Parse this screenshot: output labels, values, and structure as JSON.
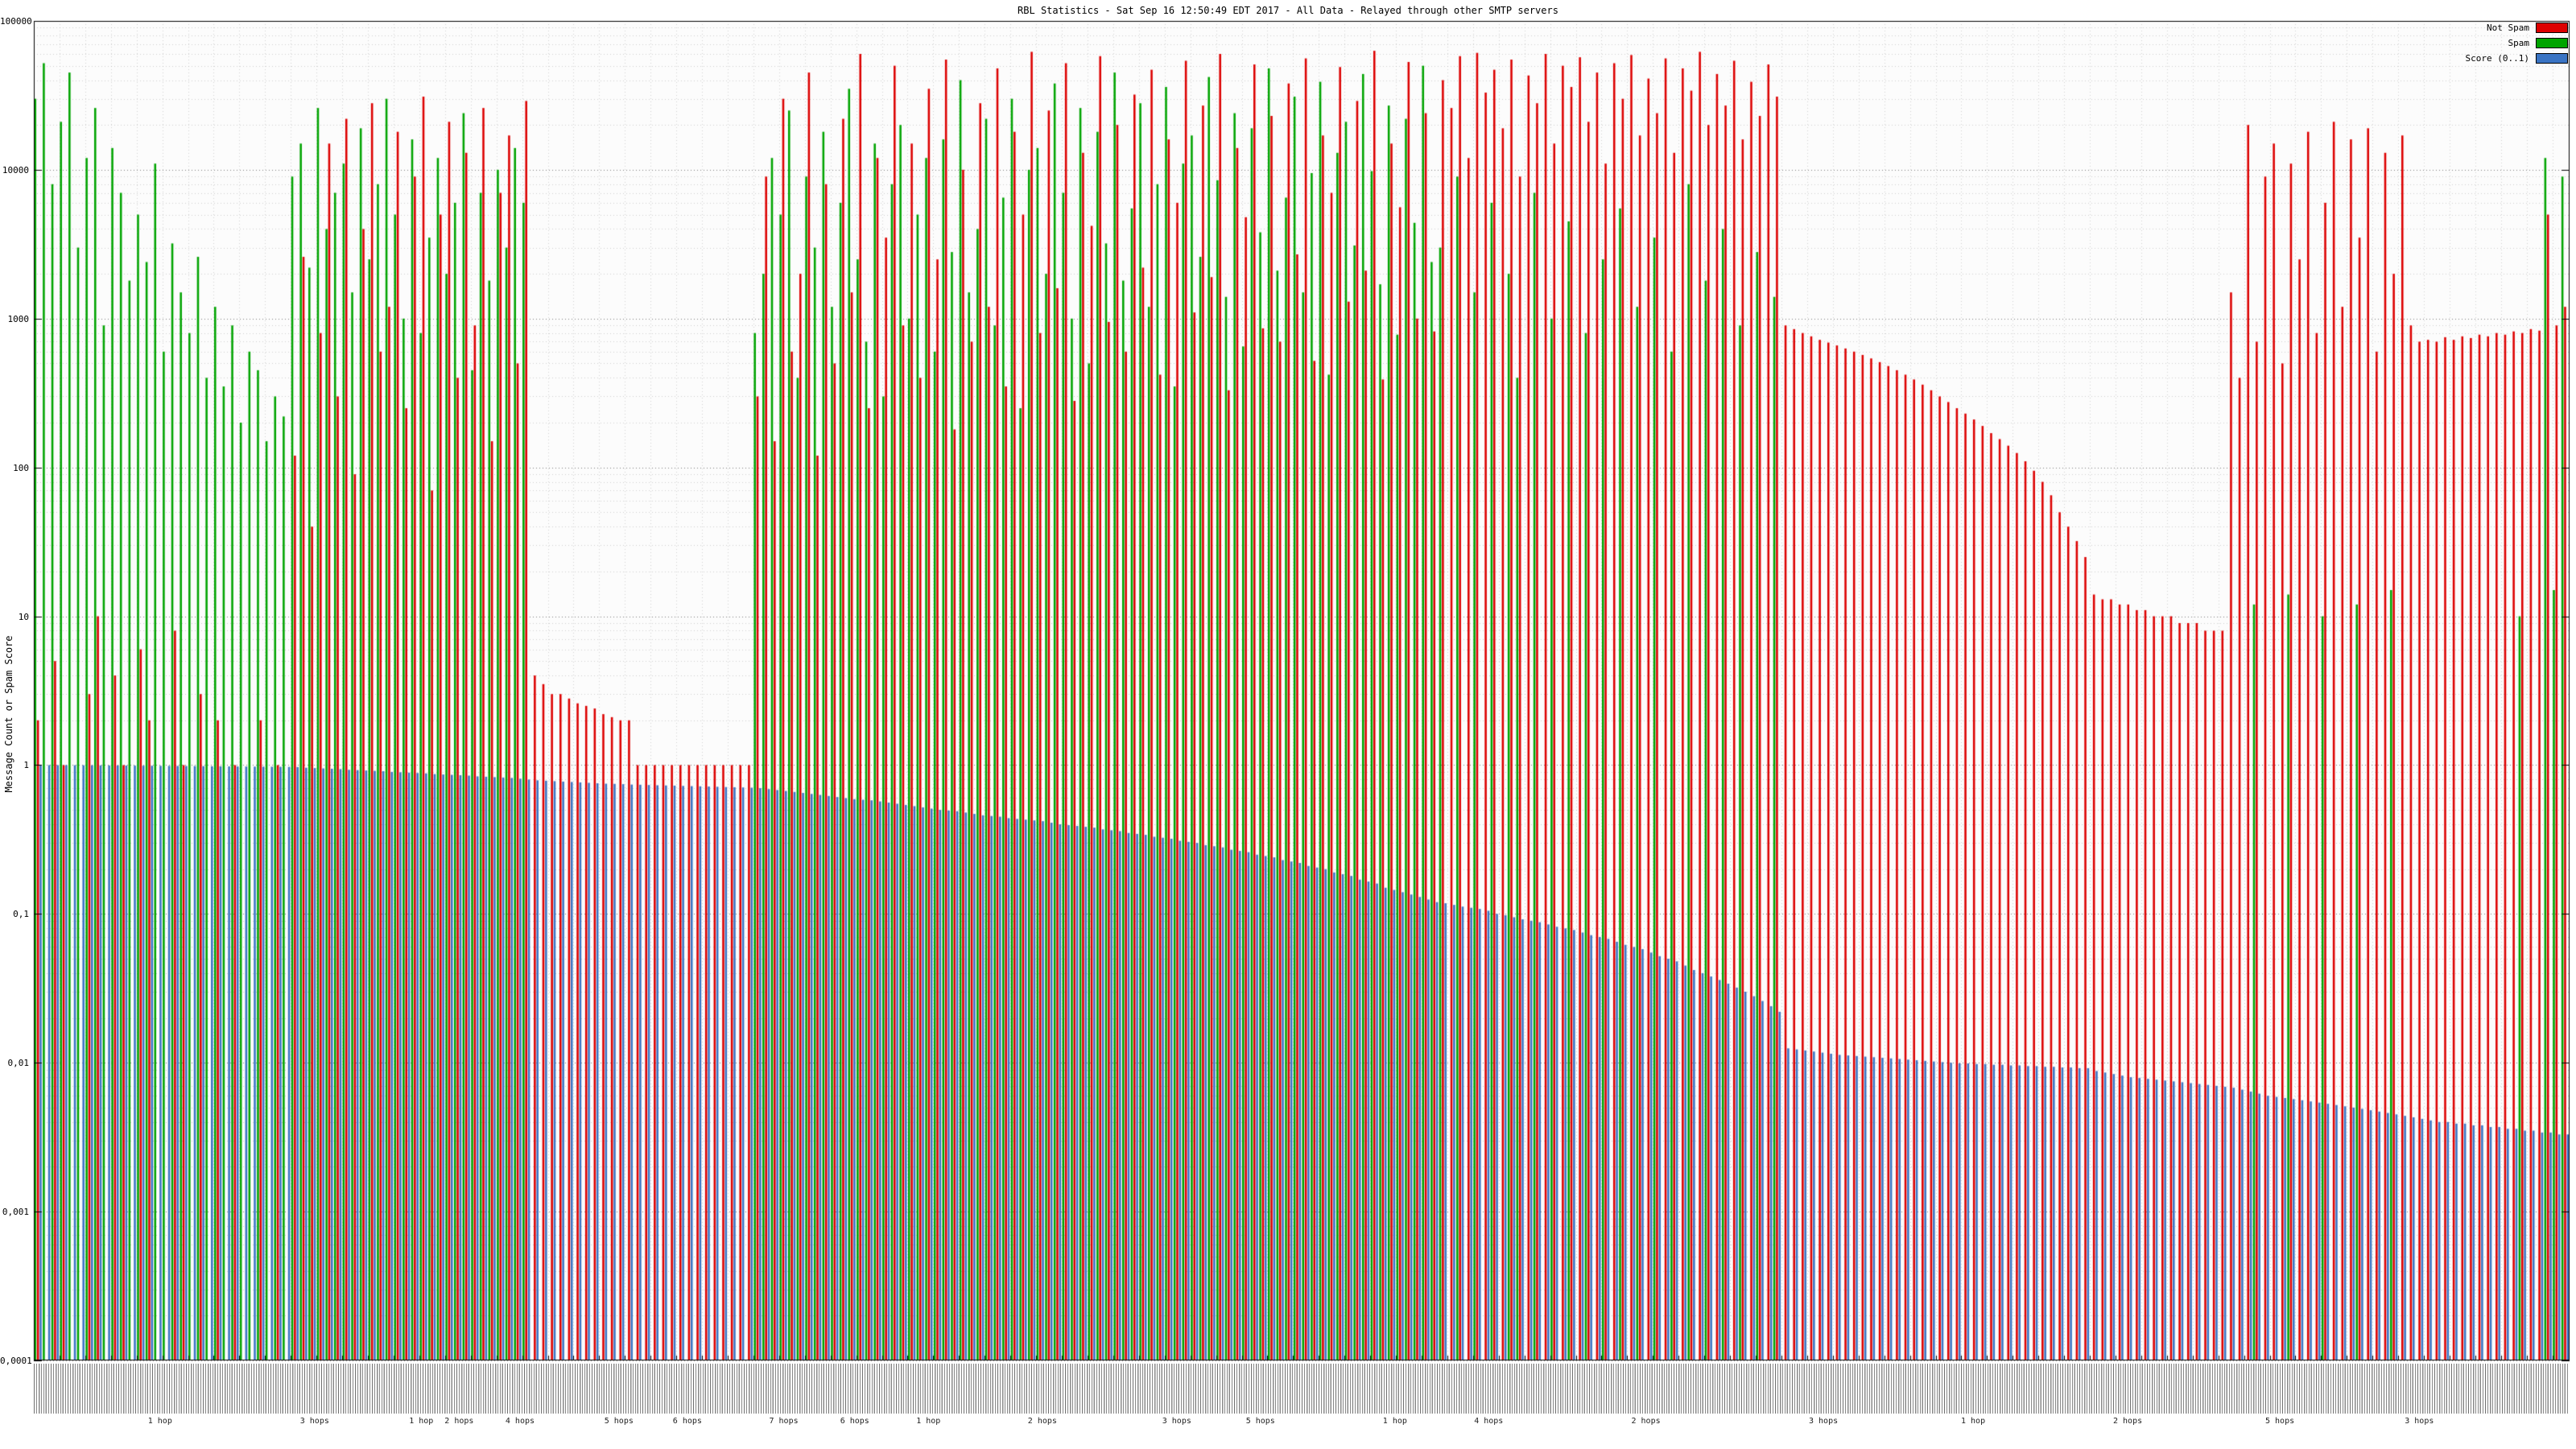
{
  "page": {
    "title": "RBL Statistics - Sat Sep 16 12:50:49 EDT 2017 - All Data - Relayed through other SMTP servers"
  },
  "chart_data": {
    "type": "bar",
    "title": "RBL Statistics - Sat Sep 16 12:50:49 EDT 2017 - All Data - Relayed through other SMTP servers",
    "xlabel": "",
    "ylabel": "Message Count or Spam Score",
    "y_scale": "log10",
    "ylim": [
      0.0001,
      100000
    ],
    "y_ticks": [
      "100000",
      "10000",
      "1000",
      "100",
      "10",
      "1",
      "0,1",
      "0,01",
      "0,001",
      "0,0001"
    ],
    "grid": "dotted",
    "legend_position": "top-right",
    "legend": [
      {
        "label": "Not Spam",
        "color": "#dd0000"
      },
      {
        "label": "Spam",
        "color": "#00a400"
      },
      {
        "label": "Score (0..1)",
        "color": "#3a74c4"
      }
    ],
    "series_keys": [
      "not_spam",
      "spam",
      "score"
    ],
    "hop_markers": [
      {
        "label": "1 hop",
        "pos": 0.045
      },
      {
        "label": "3 hops",
        "pos": 0.105
      },
      {
        "label": "1 hop",
        "pos": 0.148
      },
      {
        "label": "2 hops",
        "pos": 0.162
      },
      {
        "label": "4 hops",
        "pos": 0.186
      },
      {
        "label": "5 hops",
        "pos": 0.225
      },
      {
        "label": "6 hops",
        "pos": 0.252
      },
      {
        "label": "7 hops",
        "pos": 0.29
      },
      {
        "label": "6 hops",
        "pos": 0.318
      },
      {
        "label": "1 hop",
        "pos": 0.348
      },
      {
        "label": "2 hops",
        "pos": 0.392
      },
      {
        "label": "3 hops",
        "pos": 0.445
      },
      {
        "label": "5 hops",
        "pos": 0.478
      },
      {
        "label": "1 hop",
        "pos": 0.532
      },
      {
        "label": "4 hops",
        "pos": 0.568
      },
      {
        "label": "2 hops",
        "pos": 0.63
      },
      {
        "label": "3 hops",
        "pos": 0.7
      },
      {
        "label": "1 hop",
        "pos": 0.76
      },
      {
        "label": "2 hops",
        "pos": 0.82
      },
      {
        "label": "5 hops",
        "pos": 0.88
      },
      {
        "label": "3 hops",
        "pos": 0.935
      }
    ],
    "groups": [
      [
        2,
        30000,
        1.0
      ],
      [
        0,
        52000,
        1.0
      ],
      [
        5,
        8000,
        0.999
      ],
      [
        1,
        21000,
        0.999
      ],
      [
        0,
        45000,
        0.998
      ],
      [
        0,
        3000,
        0.998
      ],
      [
        3,
        12000,
        0.997
      ],
      [
        10,
        26000,
        0.996
      ],
      [
        0,
        900,
        0.995
      ],
      [
        4,
        14000,
        0.994
      ],
      [
        1,
        7000,
        0.993
      ],
      [
        0,
        1800,
        0.992
      ],
      [
        6,
        5000,
        0.991
      ],
      [
        2,
        2400,
        0.99
      ],
      [
        0,
        11000,
        0.989
      ],
      [
        0,
        600,
        0.988
      ],
      [
        8,
        3200,
        0.987
      ],
      [
        1,
        1500,
        0.986
      ],
      [
        0,
        800,
        0.985
      ],
      [
        3,
        2600,
        0.984
      ],
      [
        0,
        400,
        0.982
      ],
      [
        2,
        1200,
        0.981
      ],
      [
        0,
        350,
        0.98
      ],
      [
        1,
        900,
        0.979
      ],
      [
        0,
        200,
        0.978
      ],
      [
        0,
        600,
        0.977
      ],
      [
        2,
        450,
        0.976
      ],
      [
        0,
        150,
        0.975
      ],
      [
        1,
        300,
        0.974
      ],
      [
        0,
        220,
        0.973
      ],
      [
        120,
        9000,
        0.97
      ],
      [
        2600,
        15000,
        0.96
      ],
      [
        40,
        2200,
        0.955
      ],
      [
        800,
        26000,
        0.95
      ],
      [
        15000,
        4000,
        0.945
      ],
      [
        300,
        7000,
        0.94
      ],
      [
        22000,
        11000,
        0.93
      ],
      [
        90,
        1500,
        0.925
      ],
      [
        4000,
        19000,
        0.92
      ],
      [
        28000,
        2500,
        0.915
      ],
      [
        600,
        8000,
        0.91
      ],
      [
        1200,
        30000,
        0.9
      ],
      [
        18000,
        5000,
        0.895
      ],
      [
        250,
        1000,
        0.89
      ],
      [
        9000,
        16000,
        0.885
      ],
      [
        31000,
        800,
        0.88
      ],
      [
        70,
        3500,
        0.87
      ],
      [
        5000,
        12000,
        0.865
      ],
      [
        21000,
        2000,
        0.86
      ],
      [
        400,
        6000,
        0.855
      ],
      [
        13000,
        24000,
        0.85
      ],
      [
        900,
        450,
        0.84
      ],
      [
        26000,
        7000,
        0.835
      ],
      [
        150,
        1800,
        0.83
      ],
      [
        7000,
        10000,
        0.825
      ],
      [
        17000,
        3000,
        0.82
      ],
      [
        500,
        14000,
        0.81
      ],
      [
        29000,
        6000,
        0.8
      ],
      [
        4,
        0,
        0.79
      ],
      [
        3.5,
        0,
        0.785
      ],
      [
        3,
        0,
        0.78
      ],
      [
        3,
        0,
        0.775
      ],
      [
        2.8,
        0,
        0.77
      ],
      [
        2.6,
        0,
        0.765
      ],
      [
        2.5,
        0,
        0.76
      ],
      [
        2.4,
        0,
        0.755
      ],
      [
        2.2,
        0,
        0.75
      ],
      [
        2.1,
        0,
        0.748
      ],
      [
        2,
        0,
        0.745
      ],
      [
        2,
        0,
        0.74
      ],
      [
        1,
        0,
        0.738
      ],
      [
        1,
        0,
        0.735
      ],
      [
        1,
        0,
        0.732
      ],
      [
        1,
        0,
        0.73
      ],
      [
        1,
        0,
        0.728
      ],
      [
        1,
        0,
        0.725
      ],
      [
        1,
        0,
        0.722
      ],
      [
        1,
        0,
        0.72
      ],
      [
        1,
        0,
        0.718
      ],
      [
        1,
        0,
        0.715
      ],
      [
        1,
        0,
        0.712
      ],
      [
        1,
        0,
        0.71
      ],
      [
        1,
        0,
        0.708
      ],
      [
        1,
        0,
        0.705
      ],
      [
        300,
        800,
        0.7
      ],
      [
        9000,
        2000,
        0.69
      ],
      [
        150,
        12000,
        0.68
      ],
      [
        30000,
        5000,
        0.67
      ],
      [
        600,
        25000,
        0.66
      ],
      [
        2000,
        400,
        0.65
      ],
      [
        45000,
        9000,
        0.64
      ],
      [
        120,
        3000,
        0.63
      ],
      [
        8000,
        18000,
        0.62
      ],
      [
        500,
        1200,
        0.61
      ],
      [
        22000,
        6000,
        0.6
      ],
      [
        1500,
        35000,
        0.59
      ],
      [
        60000,
        2500,
        0.585
      ],
      [
        250,
        700,
        0.58
      ],
      [
        12000,
        15000,
        0.57
      ],
      [
        3500,
        300,
        0.56
      ],
      [
        50000,
        8000,
        0.55
      ],
      [
        900,
        20000,
        0.54
      ],
      [
        15000,
        1000,
        0.53
      ],
      [
        400,
        5000,
        0.52
      ],
      [
        35000,
        12000,
        0.51
      ],
      [
        2500,
        600,
        0.5
      ],
      [
        55000,
        16000,
        0.495
      ],
      [
        180,
        2800,
        0.49
      ],
      [
        10000,
        40000,
        0.48
      ],
      [
        700,
        1500,
        0.47
      ],
      [
        28000,
        4000,
        0.46
      ],
      [
        1200,
        22000,
        0.455
      ],
      [
        48000,
        900,
        0.45
      ],
      [
        350,
        6500,
        0.44
      ],
      [
        18000,
        30000,
        0.435
      ],
      [
        5000,
        250,
        0.43
      ],
      [
        62000,
        10000,
        0.425
      ],
      [
        800,
        14000,
        0.42
      ],
      [
        25000,
        2000,
        0.41
      ],
      [
        1600,
        38000,
        0.4
      ],
      [
        52000,
        7000,
        0.395
      ],
      [
        280,
        1000,
        0.39
      ],
      [
        13000,
        26000,
        0.385
      ],
      [
        4200,
        500,
        0.38
      ],
      [
        58000,
        18000,
        0.37
      ],
      [
        950,
        3200,
        0.365
      ],
      [
        20000,
        45000,
        0.36
      ],
      [
        600,
        1800,
        0.35
      ],
      [
        32000,
        5500,
        0.345
      ],
      [
        2200,
        28000,
        0.34
      ],
      [
        47000,
        1200,
        0.33
      ],
      [
        420,
        8000,
        0.325
      ],
      [
        16000,
        36000,
        0.32
      ],
      [
        6000,
        350,
        0.31
      ],
      [
        54000,
        11000,
        0.305
      ],
      [
        1100,
        17000,
        0.3
      ],
      [
        27000,
        2600,
        0.29
      ],
      [
        1900,
        42000,
        0.285
      ],
      [
        60000,
        8500,
        0.28
      ],
      [
        330,
        1400,
        0.27
      ],
      [
        14000,
        24000,
        0.265
      ],
      [
        4800,
        650,
        0.26
      ],
      [
        51000,
        19000,
        0.25
      ],
      [
        860,
        3800,
        0.245
      ],
      [
        23000,
        48000,
        0.24
      ],
      [
        700,
        2100,
        0.23
      ],
      [
        38000,
        6500,
        0.225
      ],
      [
        2700,
        31000,
        0.22
      ],
      [
        56000,
        1500,
        0.21
      ],
      [
        520,
        9500,
        0.205
      ],
      [
        17000,
        39000,
        0.2
      ],
      [
        7000,
        420,
        0.19
      ],
      [
        49000,
        13000,
        0.185
      ],
      [
        1300,
        21000,
        0.18
      ],
      [
        29000,
        3100,
        0.17
      ],
      [
        2100,
        44000,
        0.165
      ],
      [
        63000,
        9800,
        0.16
      ],
      [
        390,
        1700,
        0.15
      ],
      [
        15000,
        27000,
        0.145
      ],
      [
        5600,
        780,
        0.14
      ],
      [
        53000,
        22000,
        0.135
      ],
      [
        1000,
        4400,
        0.13
      ],
      [
        24000,
        50000,
        0.125
      ],
      [
        820,
        2400,
        0.12
      ],
      [
        40000,
        3000,
        0.118
      ],
      [
        26000,
        0,
        0.115
      ],
      [
        58000,
        9000,
        0.112
      ],
      [
        12000,
        0,
        0.11
      ],
      [
        61000,
        1500,
        0.108
      ],
      [
        33000,
        0,
        0.105
      ],
      [
        47000,
        6000,
        0.1
      ],
      [
        19000,
        0,
        0.098
      ],
      [
        55000,
        2000,
        0.095
      ],
      [
        9000,
        400,
        0.092
      ],
      [
        43000,
        0,
        0.09
      ],
      [
        28000,
        7000,
        0.088
      ],
      [
        60000,
        0,
        0.085
      ],
      [
        15000,
        1000,
        0.082
      ],
      [
        50000,
        0,
        0.08
      ],
      [
        36000,
        4500,
        0.078
      ],
      [
        57000,
        0,
        0.075
      ],
      [
        21000,
        800,
        0.072
      ],
      [
        45000,
        0,
        0.07
      ],
      [
        11000,
        2500,
        0.068
      ],
      [
        52000,
        0,
        0.065
      ],
      [
        30000,
        5500,
        0.062
      ],
      [
        59000,
        0,
        0.06
      ],
      [
        17000,
        1200,
        0.058
      ],
      [
        41000,
        0,
        0.055
      ],
      [
        24000,
        3500,
        0.052
      ],
      [
        56000,
        0,
        0.05
      ],
      [
        13000,
        600,
        0.048
      ],
      [
        48000,
        0,
        0.045
      ],
      [
        34000,
        8000,
        0.042
      ],
      [
        62000,
        0,
        0.04
      ],
      [
        20000,
        1800,
        0.038
      ],
      [
        44000,
        0,
        0.036
      ],
      [
        27000,
        4000,
        0.034
      ],
      [
        54000,
        0,
        0.032
      ],
      [
        16000,
        900,
        0.03
      ],
      [
        39000,
        0,
        0.028
      ],
      [
        23000,
        2800,
        0.026
      ],
      [
        51000,
        0,
        0.024
      ],
      [
        31000,
        1400,
        0.022
      ],
      [
        900,
        0,
        0.0125
      ],
      [
        850,
        0,
        0.0123
      ],
      [
        800,
        0,
        0.0121
      ],
      [
        760,
        0,
        0.0119
      ],
      [
        720,
        0,
        0.0117
      ],
      [
        690,
        0,
        0.0115
      ],
      [
        660,
        0,
        0.0113
      ],
      [
        630,
        0,
        0.0112
      ],
      [
        600,
        0,
        0.0111
      ],
      [
        570,
        0,
        0.011
      ],
      [
        540,
        0,
        0.0109
      ],
      [
        510,
        0,
        0.0108
      ],
      [
        480,
        0,
        0.0107
      ],
      [
        450,
        0,
        0.0106
      ],
      [
        420,
        0,
        0.0105
      ],
      [
        390,
        0,
        0.0104
      ],
      [
        360,
        0,
        0.0103
      ],
      [
        330,
        0,
        0.0102
      ],
      [
        300,
        0,
        0.0101
      ],
      [
        275,
        0,
        0.01
      ],
      [
        250,
        0,
        0.0099
      ],
      [
        230,
        0,
        0.0099
      ],
      [
        210,
        0,
        0.0098
      ],
      [
        190,
        0,
        0.0098
      ],
      [
        170,
        0,
        0.0097
      ],
      [
        155,
        0,
        0.0097
      ],
      [
        140,
        0,
        0.0096
      ],
      [
        125,
        0,
        0.0096
      ],
      [
        110,
        0,
        0.0095
      ],
      [
        95,
        0,
        0.0095
      ],
      [
        80,
        0,
        0.0094
      ],
      [
        65,
        0,
        0.0094
      ],
      [
        50,
        0,
        0.0093
      ],
      [
        40,
        0,
        0.0093
      ],
      [
        32,
        0,
        0.0092
      ],
      [
        25,
        0,
        0.0092
      ],
      [
        14,
        0,
        0.0088
      ],
      [
        13,
        0,
        0.0086
      ],
      [
        13,
        0,
        0.0084
      ],
      [
        12,
        0,
        0.0082
      ],
      [
        12,
        0,
        0.008
      ],
      [
        11,
        0,
        0.0079
      ],
      [
        11,
        0,
        0.0078
      ],
      [
        10,
        0,
        0.0077
      ],
      [
        10,
        0,
        0.0076
      ],
      [
        10,
        0,
        0.0075
      ],
      [
        9,
        0,
        0.0074
      ],
      [
        9,
        0,
        0.0073
      ],
      [
        9,
        0,
        0.0072
      ],
      [
        8,
        0,
        0.0071
      ],
      [
        8,
        0,
        0.007
      ],
      [
        8,
        0,
        0.0069
      ],
      [
        1500,
        0,
        0.0068
      ],
      [
        400,
        0,
        0.0066
      ],
      [
        20000,
        0,
        0.0064
      ],
      [
        700,
        12,
        0.0062
      ],
      [
        9000,
        0,
        0.006
      ],
      [
        15000,
        0,
        0.0059
      ],
      [
        500,
        0,
        0.0058
      ],
      [
        11000,
        14,
        0.0057
      ],
      [
        2500,
        0,
        0.0056
      ],
      [
        18000,
        0,
        0.0055
      ],
      [
        800,
        0,
        0.0054
      ],
      [
        6000,
        10,
        0.0053
      ],
      [
        21000,
        0,
        0.0052
      ],
      [
        1200,
        0,
        0.0051
      ],
      [
        16000,
        0,
        0.005
      ],
      [
        3500,
        12,
        0.0049
      ],
      [
        19000,
        0,
        0.0048
      ],
      [
        600,
        0,
        0.0047
      ],
      [
        13000,
        0,
        0.0046
      ],
      [
        2000,
        15,
        0.0045
      ],
      [
        17000,
        0,
        0.0044
      ],
      [
        900,
        0,
        0.0043
      ],
      [
        700,
        0,
        0.0042
      ],
      [
        720,
        0,
        0.0041
      ],
      [
        700,
        0,
        0.004
      ],
      [
        750,
        0,
        0.004
      ],
      [
        720,
        0,
        0.0039
      ],
      [
        760,
        0,
        0.0039
      ],
      [
        740,
        0,
        0.0038
      ],
      [
        780,
        0,
        0.0038
      ],
      [
        760,
        0,
        0.0037
      ],
      [
        800,
        0,
        0.0037
      ],
      [
        780,
        0,
        0.0036
      ],
      [
        820,
        0,
        0.0036
      ],
      [
        800,
        10,
        0.0035
      ],
      [
        850,
        0,
        0.0035
      ],
      [
        830,
        0,
        0.0034
      ],
      [
        5000,
        12000,
        0.0034
      ],
      [
        900,
        15,
        0.0033
      ],
      [
        1200,
        9000,
        0.0033
      ]
    ]
  }
}
